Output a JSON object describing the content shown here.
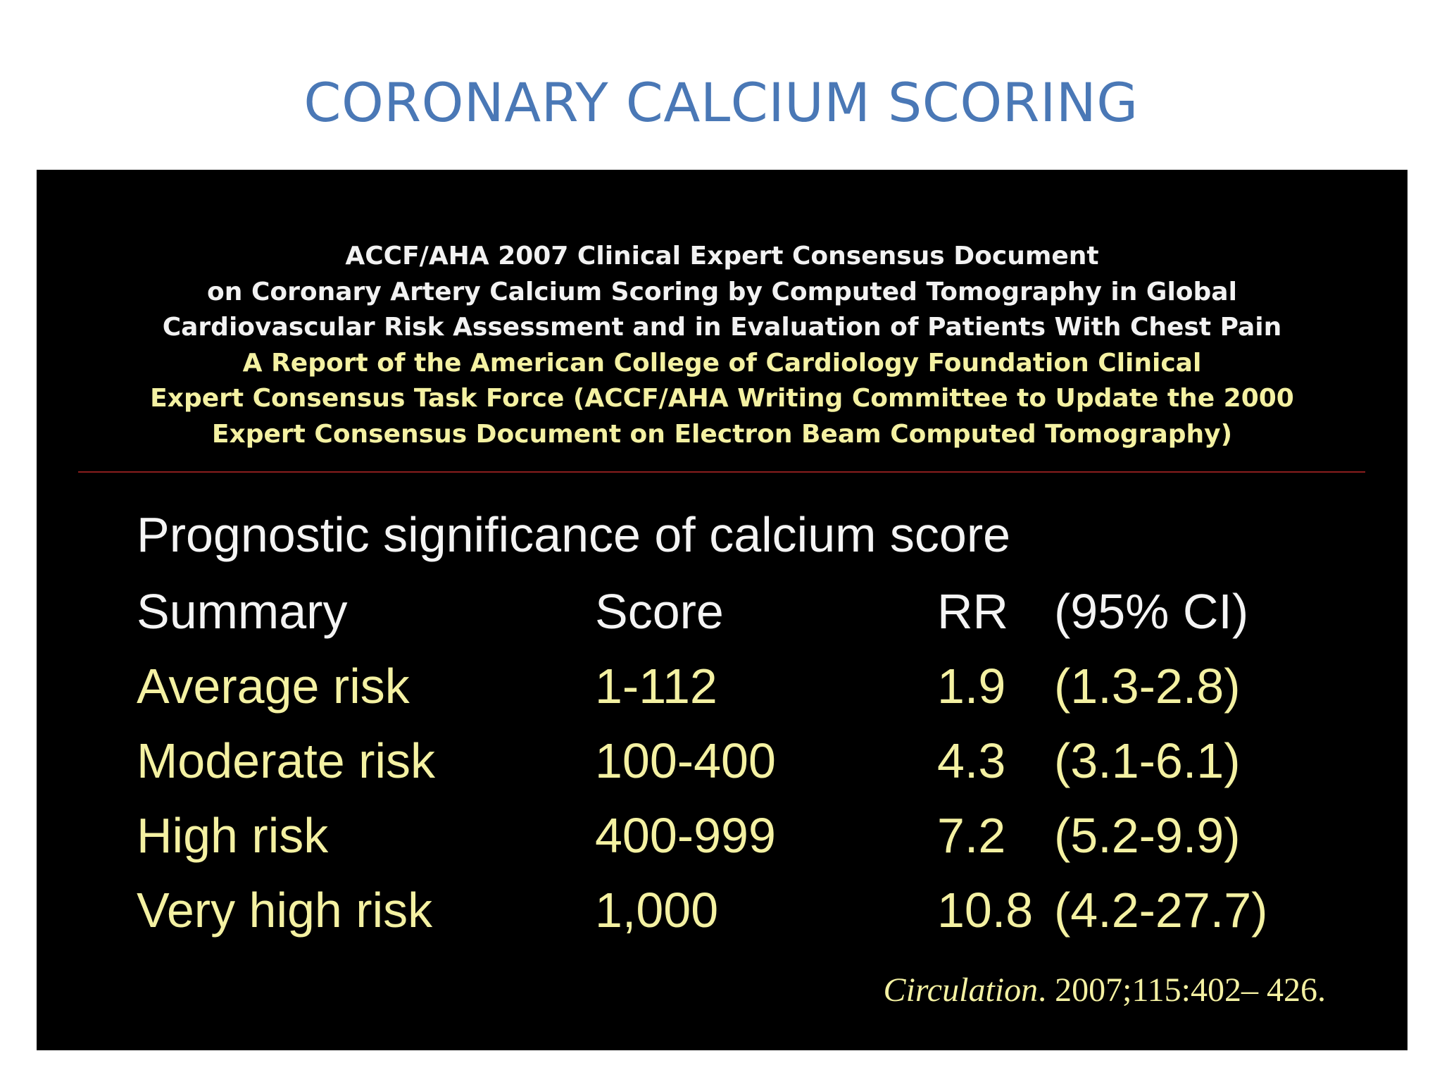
{
  "slide": {
    "title": "CORONARY CALCIUM SCORING"
  },
  "document": {
    "header_white": [
      "ACCF/AHA 2007 Clinical Expert Consensus Document",
      "on Coronary Artery Calcium Scoring by Computed Tomography in Global",
      "Cardiovascular Risk Assessment and in Evaluation of Patients With Chest Pain"
    ],
    "header_yellow": [
      "A Report of the American College of Cardiology Foundation Clinical",
      "Expert Consensus Task Force (ACCF/AHA Writing Committee to Update the 2000",
      "Expert Consensus Document on Electron Beam Computed Tomography)"
    ],
    "section_title": "Prognostic significance of calcium score",
    "table": {
      "headers": [
        "Summary",
        "Score",
        "RR",
        "(95% CI)"
      ],
      "rows": [
        [
          "Average risk",
          "1-112",
          "1.9",
          "(1.3-2.8)"
        ],
        [
          "Moderate risk",
          "100-400",
          "4.3",
          "(3.1-6.1)"
        ],
        [
          "High risk",
          "400-999",
          "7.2",
          "(5.2-9.9)"
        ],
        [
          "Very high risk",
          "1,000",
          "10.8",
          "(4.2-27.7)"
        ]
      ]
    },
    "citation": {
      "journal": "Circulation",
      "rest": ". 2007;115:402– 426."
    }
  },
  "colors": {
    "title_blue": "#4a78b6",
    "panel_black": "#000000",
    "text_white": "#f4f4f4",
    "text_yellow": "#f4f1a2",
    "divider_red": "#8a1d1d"
  }
}
